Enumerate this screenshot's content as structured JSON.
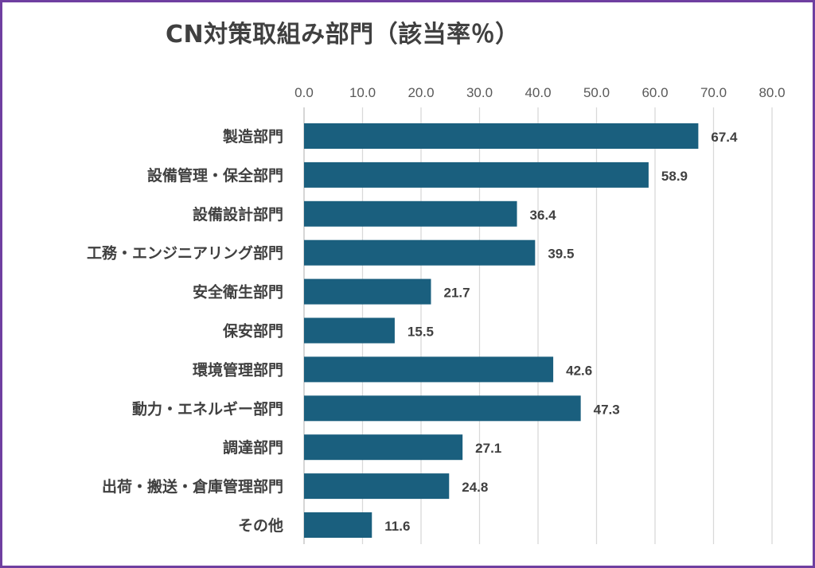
{
  "chart_data": {
    "type": "bar",
    "orientation": "horizontal",
    "title": "CN対策取組み部門（該当率％）",
    "categories": [
      "製造部門",
      "設備管理・保全部門",
      "設備設計部門",
      "工務・エンジニアリング部門",
      "安全衛生部門",
      "保安部門",
      "環境管理部門",
      "動力・エネルギー部門",
      "調達部門",
      "出荷・搬送・倉庫管理部門",
      "その他"
    ],
    "values": [
      67.4,
      58.9,
      36.4,
      39.5,
      21.7,
      15.5,
      42.6,
      47.3,
      27.1,
      24.8,
      11.6
    ],
    "value_labels": [
      "67.4",
      "58.9",
      "36.4",
      "39.5",
      "21.7",
      "15.5",
      "42.6",
      "47.3",
      "27.1",
      "24.8",
      "11.6"
    ],
    "xticks": [
      "0.0",
      "10.0",
      "20.0",
      "30.0",
      "40.0",
      "50.0",
      "60.0",
      "70.0",
      "80.0"
    ],
    "xlim": [
      0,
      80
    ],
    "xaxis_position": "top",
    "grid": true,
    "legend": false,
    "bar_color": "#1a5f7e",
    "frame_color": "#6f3fa0"
  }
}
